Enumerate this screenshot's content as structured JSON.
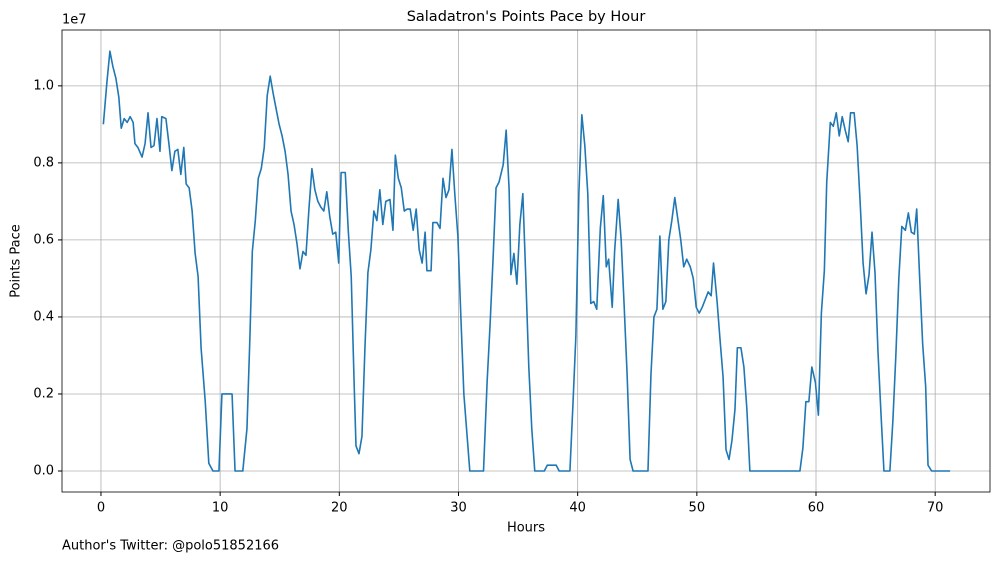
{
  "chart_data": {
    "type": "line",
    "title": "Saladatron's Points Pace by Hour",
    "xlabel": "Hours",
    "ylabel": "Points Pace",
    "y_offset_label": "1e7",
    "footnote": "Author's Twitter: @polo51852166",
    "color": "#1f77b4",
    "grid": true,
    "xlim": [
      -3.27,
      74.6
    ],
    "ylim": [
      -0.0545,
      1.145
    ],
    "xticks": [
      0,
      10,
      20,
      30,
      40,
      50,
      60,
      70
    ],
    "yticks": [
      {
        "value": 0,
        "label": "0.0"
      },
      0.2,
      0.4,
      0.6,
      0.8,
      {
        "value": 1,
        "label": "1.0"
      }
    ],
    "x": [
      0.2,
      0.5,
      0.75,
      1.0,
      1.25,
      1.5,
      1.7,
      1.95,
      2.2,
      2.45,
      2.7,
      2.85,
      3.1,
      3.45,
      3.7,
      3.95,
      4.2,
      4.45,
      4.7,
      4.95,
      5.1,
      5.45,
      5.7,
      5.95,
      6.2,
      6.45,
      6.7,
      6.95,
      7.15,
      7.4,
      7.65,
      7.9,
      8.15,
      8.4,
      8.75,
      9.05,
      9.4,
      9.9,
      10.15,
      11.0,
      11.25,
      11.9,
      12.25,
      12.5,
      12.7,
      12.95,
      13.2,
      13.45,
      13.7,
      13.95,
      14.2,
      14.45,
      14.7,
      14.95,
      15.2,
      15.45,
      15.7,
      15.95,
      16.2,
      16.45,
      16.7,
      16.95,
      17.2,
      17.45,
      17.7,
      17.95,
      18.2,
      18.45,
      18.7,
      18.95,
      19.2,
      19.45,
      19.7,
      19.95,
      20.15,
      20.5,
      20.75,
      21.0,
      21.25,
      21.4,
      21.65,
      21.9,
      22.15,
      22.4,
      22.65,
      22.9,
      23.15,
      23.4,
      23.65,
      23.9,
      24.25,
      24.5,
      24.7,
      24.95,
      25.2,
      25.45,
      25.7,
      25.95,
      26.2,
      26.45,
      26.7,
      26.95,
      27.2,
      27.35,
      27.7,
      27.85,
      28.2,
      28.45,
      28.7,
      28.95,
      29.2,
      29.45,
      29.7,
      29.95,
      30.2,
      30.45,
      30.7,
      30.95,
      32.1,
      32.4,
      32.65,
      32.9,
      33.15,
      33.4,
      33.75,
      34.0,
      34.25,
      34.4,
      34.65,
      34.9,
      35.15,
      35.4,
      35.65,
      35.9,
      36.15,
      36.4,
      37.2,
      37.45,
      38.2,
      38.45,
      39.35,
      39.6,
      39.85,
      40.1,
      40.35,
      40.6,
      40.85,
      41.1,
      41.35,
      41.6,
      41.9,
      42.15,
      42.4,
      42.6,
      42.9,
      43.1,
      43.4,
      43.65,
      43.9,
      44.15,
      44.4,
      44.65,
      45.9,
      46.15,
      46.4,
      46.65,
      46.9,
      47.15,
      47.4,
      47.65,
      47.9,
      48.15,
      48.4,
      48.65,
      48.9,
      49.15,
      49.45,
      49.7,
      49.95,
      50.2,
      50.45,
      50.7,
      50.95,
      51.2,
      51.4,
      51.7,
      51.95,
      52.2,
      52.45,
      52.7,
      52.95,
      53.2,
      53.4,
      53.7,
      53.95,
      54.2,
      54.45,
      58.65,
      58.9,
      59.15,
      59.4,
      59.65,
      59.95,
      60.2,
      60.45,
      60.7,
      60.9,
      61.2,
      61.45,
      61.7,
      61.95,
      62.2,
      62.45,
      62.7,
      62.9,
      63.2,
      63.45,
      63.7,
      63.95,
      64.2,
      64.45,
      64.7,
      64.95,
      65.2,
      65.45,
      65.7,
      66.2,
      66.45,
      66.7,
      66.95,
      67.2,
      67.5,
      67.75,
      68.0,
      68.25,
      68.45,
      68.7,
      68.95,
      69.2,
      69.4,
      69.7,
      71.25
    ],
    "values": [
      0.9,
      1.01,
      1.09,
      1.05,
      1.02,
      0.97,
      0.89,
      0.915,
      0.905,
      0.92,
      0.905,
      0.85,
      0.84,
      0.815,
      0.85,
      0.93,
      0.84,
      0.845,
      0.915,
      0.83,
      0.92,
      0.915,
      0.85,
      0.78,
      0.83,
      0.835,
      0.77,
      0.84,
      0.745,
      0.735,
      0.675,
      0.565,
      0.505,
      0.32,
      0.18,
      0.02,
      0.0,
      0.0,
      0.2,
      0.2,
      0.0,
      0.0,
      0.11,
      0.35,
      0.57,
      0.65,
      0.76,
      0.785,
      0.84,
      0.975,
      1.025,
      0.98,
      0.94,
      0.9,
      0.87,
      0.83,
      0.77,
      0.675,
      0.64,
      0.59,
      0.525,
      0.57,
      0.56,
      0.68,
      0.785,
      0.73,
      0.7,
      0.685,
      0.675,
      0.725,
      0.66,
      0.615,
      0.62,
      0.54,
      0.775,
      0.775,
      0.625,
      0.505,
      0.22,
      0.065,
      0.045,
      0.09,
      0.32,
      0.515,
      0.575,
      0.675,
      0.65,
      0.73,
      0.64,
      0.7,
      0.705,
      0.625,
      0.82,
      0.76,
      0.735,
      0.675,
      0.68,
      0.68,
      0.625,
      0.68,
      0.575,
      0.54,
      0.62,
      0.52,
      0.52,
      0.645,
      0.645,
      0.63,
      0.76,
      0.71,
      0.73,
      0.835,
      0.715,
      0.61,
      0.4,
      0.2,
      0.1,
      0.0,
      0.0,
      0.23,
      0.38,
      0.55,
      0.735,
      0.75,
      0.795,
      0.885,
      0.73,
      0.51,
      0.565,
      0.485,
      0.64,
      0.72,
      0.5,
      0.27,
      0.11,
      0.0,
      0.0,
      0.015,
      0.015,
      0.0,
      0.0,
      0.17,
      0.35,
      0.72,
      0.925,
      0.845,
      0.72,
      0.435,
      0.44,
      0.42,
      0.63,
      0.715,
      0.53,
      0.55,
      0.425,
      0.57,
      0.705,
      0.6,
      0.43,
      0.25,
      0.03,
      0.0,
      0.0,
      0.25,
      0.4,
      0.42,
      0.61,
      0.42,
      0.44,
      0.6,
      0.65,
      0.71,
      0.655,
      0.6,
      0.53,
      0.55,
      0.53,
      0.5,
      0.425,
      0.41,
      0.425,
      0.445,
      0.465,
      0.455,
      0.54,
      0.44,
      0.34,
      0.245,
      0.055,
      0.03,
      0.08,
      0.16,
      0.32,
      0.32,
      0.27,
      0.16,
      0.0,
      0.0,
      0.06,
      0.18,
      0.18,
      0.27,
      0.23,
      0.145,
      0.41,
      0.52,
      0.75,
      0.905,
      0.895,
      0.93,
      0.87,
      0.92,
      0.885,
      0.855,
      0.93,
      0.93,
      0.845,
      0.7,
      0.54,
      0.46,
      0.51,
      0.62,
      0.515,
      0.31,
      0.15,
      0.0,
      0.0,
      0.13,
      0.3,
      0.5,
      0.635,
      0.625,
      0.67,
      0.62,
      0.615,
      0.68,
      0.5,
      0.33,
      0.22,
      0.015,
      0.0,
      0.0
    ]
  }
}
